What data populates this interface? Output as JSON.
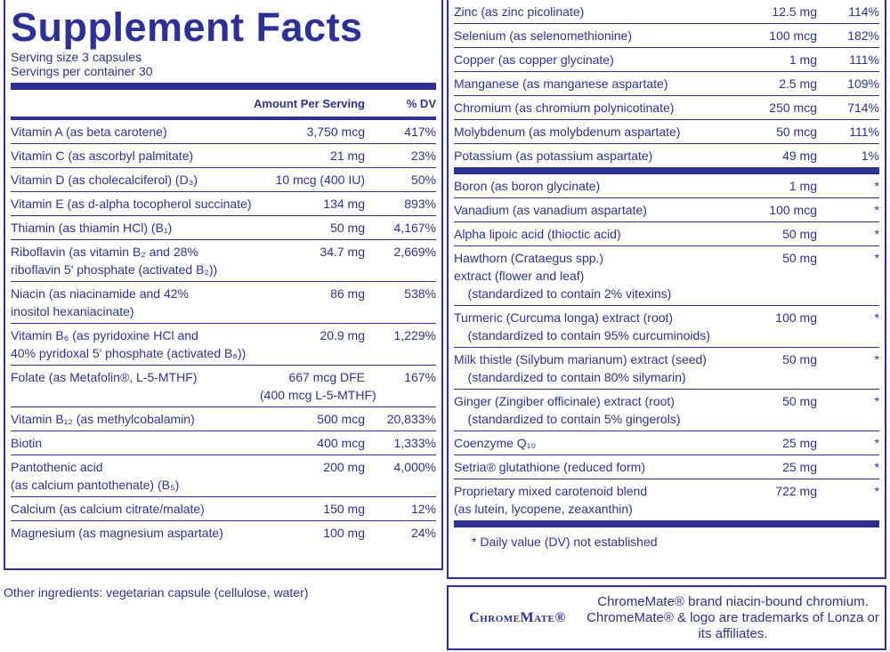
{
  "title": "Supplement Facts",
  "serving_size": "Serving size  3 capsules",
  "servings_per_container": "Servings per container  30",
  "header": {
    "amount": "Amount Per Serving",
    "dv": "% DV"
  },
  "left_rows": [
    [
      "Vitamin A (as beta carotene)",
      "3,750 mcg",
      "417%"
    ],
    [
      "Vitamin C (as ascorbyl palmitate)",
      "21 mg",
      "23%"
    ],
    [
      "Vitamin D (as cholecalciferol) (D₃)",
      "10 mcg (400 IU)",
      "50%"
    ],
    [
      "Vitamin E (as d-alpha tocopherol succinate)",
      "134 mg",
      "893%"
    ],
    [
      "Thiamin (as thiamin HCl) (B₁)",
      "50 mg",
      "4,167%"
    ],
    [
      "Riboflavin (as vitamin B₂ and 28%\nriboflavin 5′ phosphate (activated B₂))",
      "34.7 mg",
      "2,669%"
    ],
    [
      "Niacin (as niacinamide and 42%\ninositol hexaniacinate)",
      "86 mg",
      "538%"
    ],
    [
      "Vitamin B₆ (as pyridoxine HCl and\n40% pyridoxal 5′ phosphate (activated B₆))",
      "20.9 mg",
      "1,229%"
    ],
    [
      "Folate (as Metafolin®, L-5-MTHF)",
      "667 mcg DFE\n(400 mcg L-5-MTHF)",
      "167%"
    ],
    [
      "Vitamin B₁₂ (as methylcobalamin)",
      "500 mcg",
      "20,833%"
    ],
    [
      "Biotin",
      "400 mcg",
      "1,333%"
    ],
    [
      "Pantothenic acid\n(as calcium pantothenate) (B₅)",
      "200 mg",
      "4,000%"
    ],
    [
      "Calcium (as calcium citrate/malate)",
      "150 mg",
      "12%"
    ],
    [
      "Magnesium (as magnesium aspartate)",
      "100 mg",
      "24%"
    ]
  ],
  "right_rows": [
    [
      "Zinc (as zinc picolinate)",
      "12.5 mg",
      "114%"
    ],
    [
      "Selenium (as selenomethionine)",
      "100 mcg",
      "182%"
    ],
    [
      "Copper (as copper glycinate)",
      "1 mg",
      "111%"
    ],
    [
      "Manganese (as manganese aspartate)",
      "2.5 mg",
      "109%"
    ],
    [
      "Chromium (as chromium polynicotinate)",
      "250 mcg",
      "714%"
    ],
    [
      "Molybdenum (as molybdenum aspartate)",
      "50 mcg",
      "111%"
    ],
    [
      "Potassium (as potassium aspartate)",
      "49 mg",
      "1%"
    ]
  ],
  "right_rows_2": [
    [
      "Boron (as boron glycinate)",
      "1 mg",
      "*"
    ],
    [
      "Vanadium (as vanadium aspartate)",
      "100 mcg",
      "*"
    ],
    [
      "Alpha lipoic acid (thioctic acid)",
      "50 mg",
      "*"
    ],
    [
      "Hawthorn (Crataegus spp.)\nextract (flower and leaf)\n    (standardized to contain 2% vitexins)",
      "50 mg",
      "*"
    ],
    [
      "Turmeric (Curcuma longa) extract (root)\n    (standardized to contain 95% curcuminoids)",
      "100 mg",
      "*"
    ],
    [
      "Milk thistle (Silybum marianum) extract (seed)\n    (standardized to contain 80% silymarin)",
      "50 mg",
      "*"
    ],
    [
      "Ginger (Zingiber officinale) extract (root)\n    (standardized to contain 5% gingerols)",
      "50 mg",
      "*"
    ],
    [
      "Coenzyme Q₁₀",
      "25 mg",
      "*"
    ],
    [
      "Setria® glutathione (reduced form)",
      "25 mg",
      "*"
    ],
    [
      "Proprietary mixed carotenoid blend\n(as lutein, lycopene, zeaxanthin)",
      "722 mg",
      "*"
    ]
  ],
  "footnote": "*  Daily value (DV) not established",
  "other_ingredients": "Other ingredients: vegetarian capsule (cellulose, water)",
  "logo": "ChromeMate®",
  "logo_note": "ChromeMate® brand niacin-bound chromium. ChromeMate® & logo are trademarks of Lonza or its affiliates."
}
